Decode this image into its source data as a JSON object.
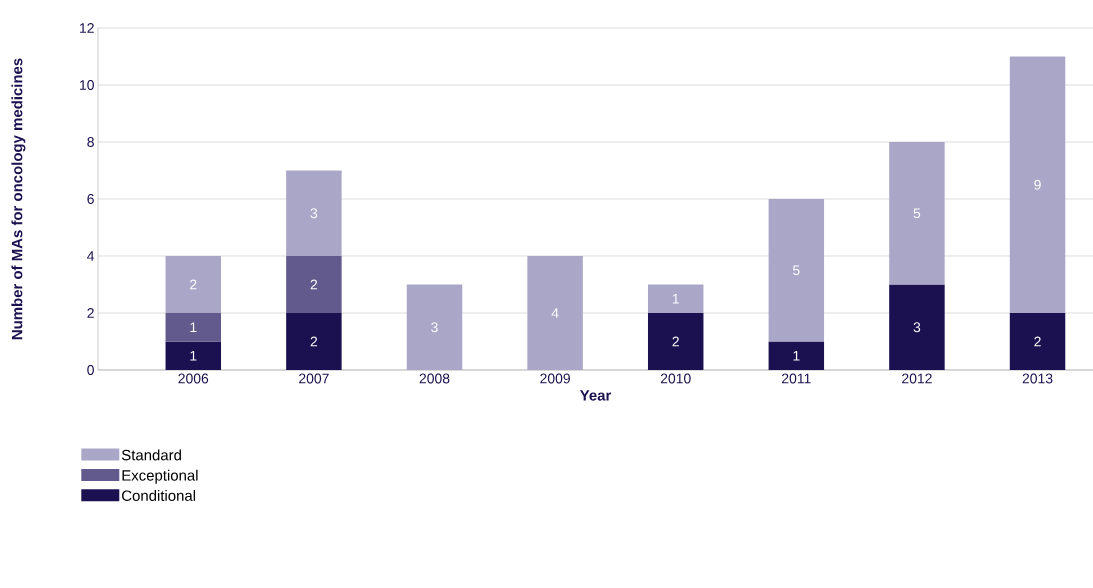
{
  "chart_data": {
    "type": "bar",
    "stacked": true,
    "xlabel": "Year",
    "ylabel": "Number of MAs for oncology medicines",
    "categories": [
      "2006",
      "2007",
      "2008",
      "2009",
      "2010",
      "2011",
      "2012",
      "2013"
    ],
    "series": [
      {
        "name": "Conditional",
        "color": "#1c1150",
        "values": [
          1,
          2,
          null,
          null,
          2,
          1,
          3,
          2
        ]
      },
      {
        "name": "Exceptional",
        "color": "#625a8c",
        "values": [
          1,
          2,
          null,
          null,
          null,
          null,
          null,
          null
        ]
      },
      {
        "name": "Standard",
        "color": "#aaa6c8",
        "values": [
          2,
          3,
          3,
          4,
          1,
          5,
          5,
          9
        ]
      }
    ],
    "ylim": [
      0,
      12
    ],
    "yticks": [
      0,
      2,
      4,
      6,
      8,
      10,
      12
    ],
    "grid": "y",
    "legend": "bottom left",
    "data_labels": true
  }
}
